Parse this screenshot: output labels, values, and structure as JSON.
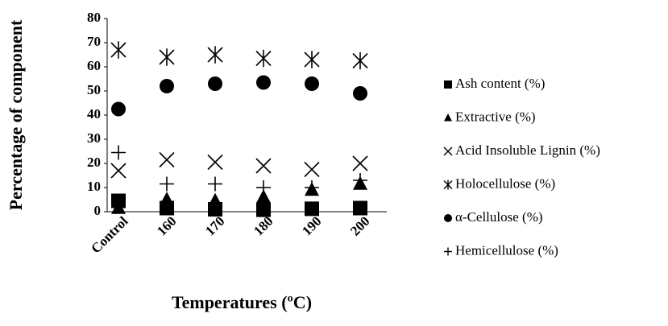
{
  "chart_data": {
    "type": "scatter",
    "xlabel": "Temperatures (ºC)",
    "ylabel": "Percentage of component",
    "categories": [
      "Control",
      "160",
      "170",
      "180",
      "190",
      "200"
    ],
    "ylim": [
      0,
      80
    ],
    "yticks": [
      0,
      10,
      20,
      30,
      40,
      50,
      60,
      70,
      80
    ],
    "grid": false,
    "legend": "right",
    "series": [
      {
        "name": "Ash content (%)",
        "color": "#000000",
        "marker": "square",
        "values": [
          4.5,
          1.5,
          1,
          0.8,
          1.2,
          1.5
        ]
      },
      {
        "name": "Extractive (%)",
        "color": "#000000",
        "marker": "triangle",
        "values": [
          1.5,
          5,
          4.5,
          6,
          9,
          11.5
        ]
      },
      {
        "name": "Acid Insoluble Lignin (%)",
        "color": "#000000",
        "marker": "x",
        "values": [
          17,
          21.5,
          20.5,
          19,
          17.5,
          20
        ]
      },
      {
        "name": "Holocellulose (%)",
        "color": "#000000",
        "marker": "star",
        "values": [
          67,
          64,
          65,
          63.5,
          63,
          62.5
        ]
      },
      {
        "name": "α-Cellulose  (%)",
        "color": "#000000",
        "marker": "circle",
        "values": [
          42.5,
          52,
          53,
          53.5,
          53,
          49
        ]
      },
      {
        "name": "Hemicellulose (%)",
        "color": "#000000",
        "marker": "plus",
        "values": [
          24.5,
          11.5,
          11.5,
          10,
          10,
          13
        ]
      }
    ]
  }
}
